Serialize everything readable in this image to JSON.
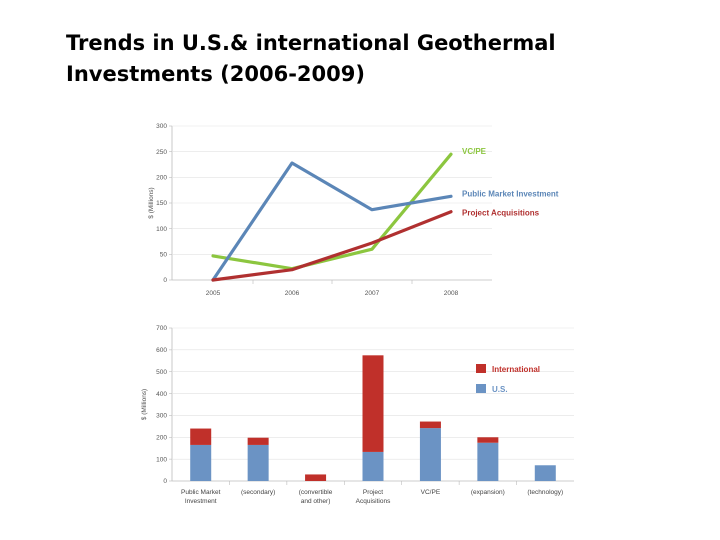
{
  "slide": {
    "title_line1": "Trends in U.S.& international Geothermal",
    "title_line2": "Investments (2006-2009)"
  },
  "chart_data": [
    {
      "type": "line",
      "ylabel": "$ (Millions)",
      "ylim": [
        0,
        300
      ],
      "yticks": [
        0,
        50,
        100,
        150,
        200,
        250,
        300
      ],
      "x": [
        "2005",
        "2006",
        "2007",
        "2008"
      ],
      "series": [
        {
          "name": "VC/PE",
          "color": "#8cc63f",
          "values": [
            47,
            22,
            60,
            245
          ]
        },
        {
          "name": "Public Market Investment",
          "color": "#5b86b7",
          "values": [
            0,
            228,
            137,
            163
          ]
        },
        {
          "name": "Project Acquisitions",
          "color": "#b03030",
          "values": [
            0,
            20,
            72,
            133
          ]
        }
      ]
    },
    {
      "type": "bar",
      "stacked": true,
      "ylabel": "$ (Millions)",
      "ylim": [
        0,
        700
      ],
      "yticks": [
        0,
        100,
        200,
        300,
        400,
        500,
        600,
        700
      ],
      "categories": [
        [
          "Public Market",
          "Investment"
        ],
        [
          "(secondary)"
        ],
        [
          "(convertible",
          "and other)"
        ],
        [
          "Project",
          "Acquisitions"
        ],
        [
          "VC/PE"
        ],
        [
          "(expansion)"
        ],
        [
          "(technology)"
        ]
      ],
      "series": [
        {
          "name": "U.S.",
          "color": "#6b93c4",
          "values": [
            165,
            165,
            0,
            133,
            242,
            175,
            72
          ]
        },
        {
          "name": "International",
          "color": "#c0302a",
          "values": [
            75,
            33,
            30,
            442,
            30,
            25,
            0
          ]
        }
      ],
      "legend": [
        {
          "name": "International",
          "color": "#c0302a"
        },
        {
          "name": "U.S.",
          "color": "#6b93c4"
        }
      ]
    }
  ]
}
